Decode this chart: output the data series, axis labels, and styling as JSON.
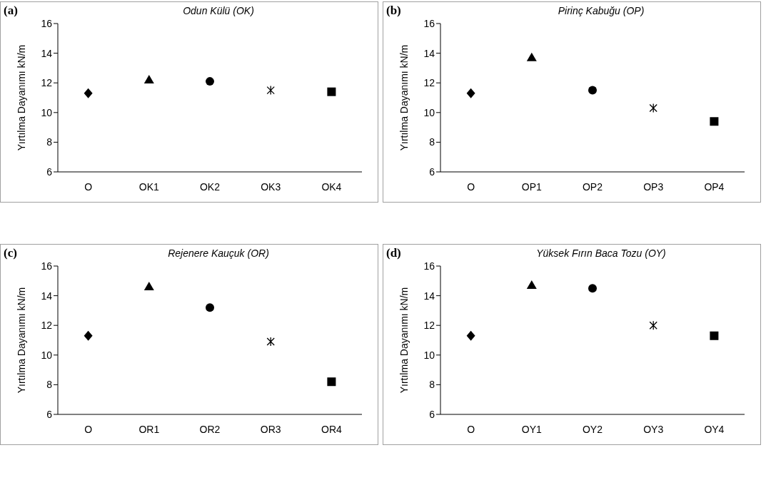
{
  "chart_data": [
    {
      "type": "scatter",
      "title": "Odun Külü (OK)",
      "annotations": [
        "(a)"
      ],
      "ylabel": "Yırtılma Dayanımı kN/m",
      "categories": [
        "O",
        "OK1",
        "OK2",
        "OK3",
        "OK4"
      ],
      "ylim": [
        6,
        16
      ],
      "yticks": [
        6,
        8,
        10,
        12,
        14,
        16
      ],
      "grid": false,
      "legend": false,
      "series": [
        {
          "color": "#000000",
          "marker": "diamond",
          "values": [
            11.3,
            null,
            null,
            null,
            null
          ]
        },
        {
          "color": "#000000",
          "marker": "triangle",
          "values": [
            null,
            12.2,
            null,
            null,
            null
          ]
        },
        {
          "color": "#000000",
          "marker": "circle",
          "values": [
            null,
            null,
            12.1,
            null,
            null
          ]
        },
        {
          "color": "#000000",
          "marker": "cross",
          "values": [
            null,
            null,
            null,
            11.5,
            null
          ]
        },
        {
          "color": "#000000",
          "marker": "square",
          "values": [
            null,
            null,
            null,
            null,
            11.4
          ]
        }
      ]
    },
    {
      "type": "scatter",
      "title": "Pirinç Kabuğu (OP)",
      "annotations": [
        "(b)"
      ],
      "ylabel": "Yırtılma Dayanımı kN/m",
      "categories": [
        "O",
        "OP1",
        "OP2",
        "OP3",
        "OP4"
      ],
      "ylim": [
        6,
        16
      ],
      "yticks": [
        6,
        8,
        10,
        12,
        14,
        16
      ],
      "grid": false,
      "legend": false,
      "series": [
        {
          "color": "#000000",
          "marker": "diamond",
          "values": [
            11.3,
            null,
            null,
            null,
            null
          ]
        },
        {
          "color": "#000000",
          "marker": "triangle",
          "values": [
            null,
            13.7,
            null,
            null,
            null
          ]
        },
        {
          "color": "#000000",
          "marker": "circle",
          "values": [
            null,
            null,
            11.5,
            null,
            null
          ]
        },
        {
          "color": "#000000",
          "marker": "cross",
          "values": [
            null,
            null,
            null,
            10.3,
            null
          ]
        },
        {
          "color": "#000000",
          "marker": "square",
          "values": [
            null,
            null,
            null,
            null,
            9.4
          ]
        }
      ]
    },
    {
      "type": "scatter",
      "title": "Rejenere Kauçuk (OR)",
      "annotations": [
        "(c)"
      ],
      "ylabel": "Yırtılma Dayanımı kN/m",
      "categories": [
        "O",
        "OR1",
        "OR2",
        "OR3",
        "OR4"
      ],
      "ylim": [
        6,
        16
      ],
      "yticks": [
        6,
        8,
        10,
        12,
        14,
        16
      ],
      "grid": false,
      "legend": false,
      "series": [
        {
          "color": "#000000",
          "marker": "diamond",
          "values": [
            11.3,
            null,
            null,
            null,
            null
          ]
        },
        {
          "color": "#000000",
          "marker": "triangle",
          "values": [
            null,
            14.6,
            null,
            null,
            null
          ]
        },
        {
          "color": "#000000",
          "marker": "circle",
          "values": [
            null,
            null,
            13.2,
            null,
            null
          ]
        },
        {
          "color": "#000000",
          "marker": "cross",
          "values": [
            null,
            null,
            null,
            10.9,
            null
          ]
        },
        {
          "color": "#000000",
          "marker": "square",
          "values": [
            null,
            null,
            null,
            null,
            8.2
          ]
        }
      ]
    },
    {
      "type": "scatter",
      "title": "Yüksek Fırın Baca Tozu (OY)",
      "annotations": [
        "(d)"
      ],
      "ylabel": "Yırtılma Dayanımı kN/m",
      "categories": [
        "O",
        "OY1",
        "OY2",
        "OY3",
        "OY4"
      ],
      "ylim": [
        6,
        16
      ],
      "yticks": [
        6,
        8,
        10,
        12,
        14,
        16
      ],
      "grid": false,
      "legend": false,
      "series": [
        {
          "color": "#000000",
          "marker": "diamond",
          "values": [
            11.3,
            null,
            null,
            null,
            null
          ]
        },
        {
          "color": "#000000",
          "marker": "triangle",
          "values": [
            null,
            14.7,
            null,
            null,
            null
          ]
        },
        {
          "color": "#000000",
          "marker": "circle",
          "values": [
            null,
            null,
            14.5,
            null,
            null
          ]
        },
        {
          "color": "#000000",
          "marker": "cross",
          "values": [
            null,
            null,
            null,
            12.0,
            null
          ]
        },
        {
          "color": "#000000",
          "marker": "square",
          "values": [
            null,
            null,
            null,
            null,
            11.3
          ]
        }
      ]
    }
  ]
}
